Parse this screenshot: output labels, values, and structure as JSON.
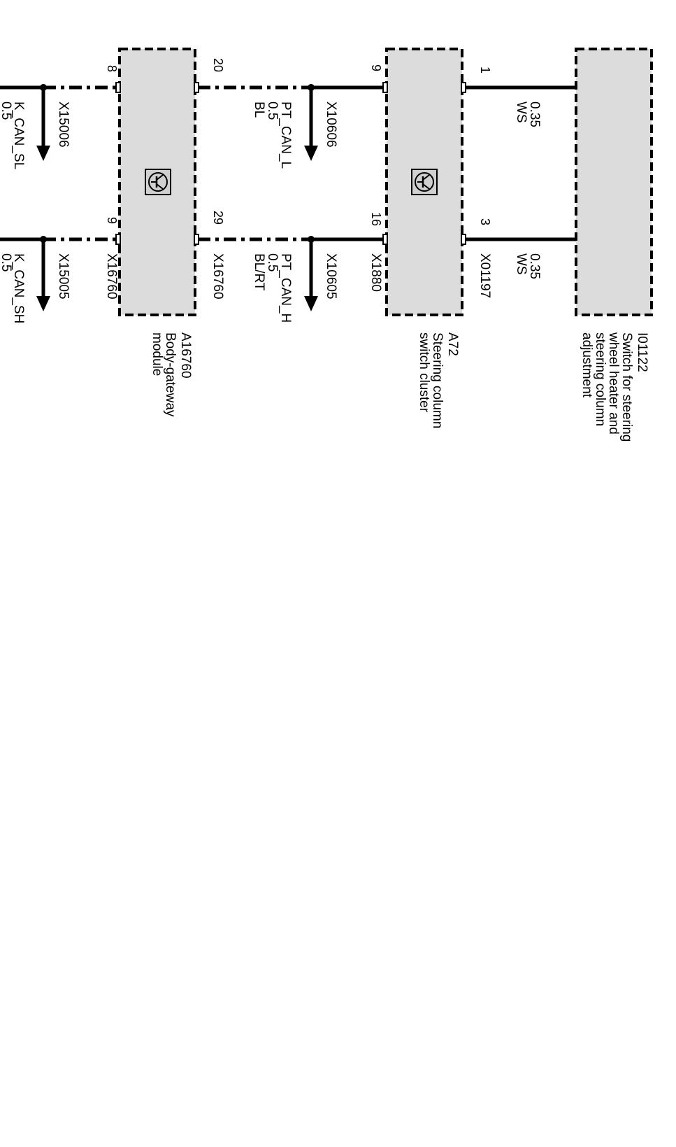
{
  "components": {
    "i01122": {
      "id": "I01122",
      "name_lines": [
        "Switch for steering",
        "wheel heater and",
        "steering column",
        "adjustment"
      ]
    },
    "a72": {
      "id": "A72",
      "name_lines": [
        "Steering column",
        "switch cluster"
      ]
    },
    "a16760": {
      "id": "A16760",
      "name_lines": [
        "Body-gateway",
        "module"
      ]
    }
  },
  "pins": {
    "i01122_top": "1",
    "i01122_bottom": "3",
    "a72_top_in": "9",
    "a72_bottom_in": "16",
    "a16760_top_right": "20",
    "a16760_bottom_right": "29",
    "a16760_top_left": "8",
    "a16760_bottom_left": "9"
  },
  "connectors": {
    "x01197": "X01197",
    "x1880": "X1880",
    "x16760_a": "X16760",
    "x16760_b": "X16760",
    "x10606": "X10606",
    "x10605": "X10605",
    "x15006": "X15006",
    "x15005": "X15005"
  },
  "wires": {
    "ws_top": {
      "size": "0.35",
      "color": "WS"
    },
    "ws_bottom": {
      "size": "0.35",
      "color": "WS"
    },
    "pt_can_l": {
      "signal": "PT_CAN_L",
      "size": "0.5",
      "color": "BL"
    },
    "pt_can_h": {
      "signal": "PT_CAN_H",
      "size": "0.5",
      "color": "BL/RT"
    },
    "k_can_sl": {
      "signal": "K_CAN_SL",
      "size": "0.5"
    },
    "k_can_sh": {
      "signal": "K_CAN_SH",
      "size": "0.5"
    }
  },
  "icons": {
    "a72_module": "transistor-icon",
    "a16760_module": "transistor-icon"
  }
}
